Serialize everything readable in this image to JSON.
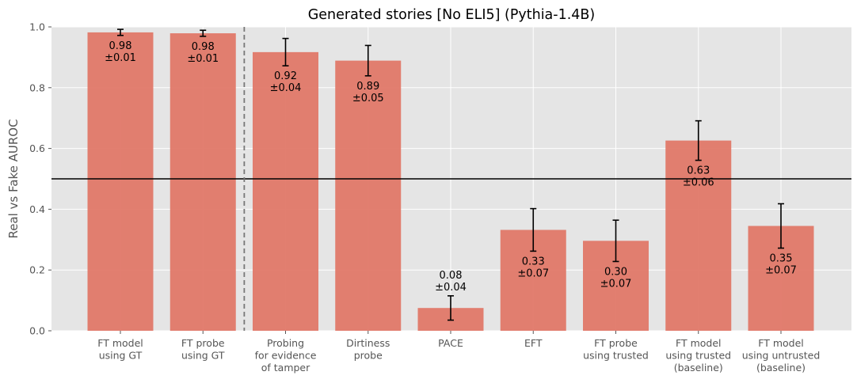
{
  "chart_data": {
    "type": "bar",
    "title": "Generated stories [No ELI5] (Pythia-1.4B)",
    "xlabel": "",
    "ylabel": "Real vs Fake AUROC",
    "ylim": [
      0,
      1.0
    ],
    "yticks": [
      "0.0",
      "0.2",
      "0.4",
      "0.6",
      "0.8",
      "1.0"
    ],
    "grid": true,
    "reference_line": 0.5,
    "separator_after_index": 1,
    "categories": [
      [
        "FT model",
        "using GT"
      ],
      [
        "FT probe",
        "using GT"
      ],
      [
        "Probing",
        "for evidence",
        "of tamper"
      ],
      [
        "Dirtiness",
        "probe"
      ],
      [
        "PACE"
      ],
      [
        "EFT"
      ],
      [
        "FT probe",
        "using trusted"
      ],
      [
        "FT model",
        "using trusted",
        "(baseline)"
      ],
      [
        "FT model",
        "using untrusted",
        "(baseline)"
      ]
    ],
    "values": [
      0.982,
      0.979,
      0.917,
      0.889,
      0.075,
      0.332,
      0.296,
      0.626,
      0.345
    ],
    "errors": [
      0.01,
      0.01,
      0.045,
      0.05,
      0.04,
      0.07,
      0.068,
      0.065,
      0.073
    ],
    "value_labels": [
      "0.98",
      "0.98",
      "0.92",
      "0.89",
      "0.08",
      "0.33",
      "0.30",
      "0.63",
      "0.35"
    ],
    "error_labels": [
      "±0.01",
      "±0.01",
      "±0.04",
      "±0.05",
      "±0.04",
      "±0.07",
      "±0.07",
      "±0.06",
      "±0.07"
    ],
    "colors": {
      "bar": "#e07868",
      "background": "#e5e5e5",
      "grid": "#ffffff",
      "reference_line": "#000000",
      "separator": "#777777",
      "error_bar": "#000000"
    }
  }
}
